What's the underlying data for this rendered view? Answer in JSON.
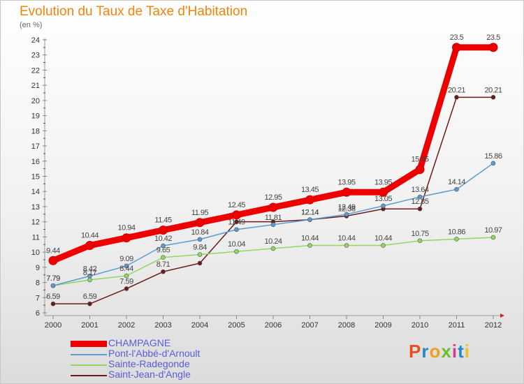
{
  "page": {
    "title": "Evolution du Taux de Taxe d'Habitation",
    "subtitle": "(en %)"
  },
  "brand": {
    "text": "Proxiti",
    "letter_colors": [
      "#e8501c",
      "#1f8ac8",
      "#f0a020",
      "#6cbf2a",
      "#d23a8c",
      "#1f8ac8",
      "#f0c020"
    ]
  },
  "chart_data": {
    "type": "line",
    "title": "Evolution du Taux de Taxe d'Habitation",
    "ylabel": "(en %)",
    "xlabel": "",
    "x": [
      "2000",
      "2001",
      "2002",
      "2003",
      "2004",
      "2005",
      "2006",
      "2007",
      "2008",
      "2009",
      "2010",
      "2011",
      "2012"
    ],
    "ylim": [
      6,
      24
    ],
    "yticks": [
      6,
      7,
      8,
      9,
      10,
      11,
      12,
      13,
      14,
      15,
      16,
      17,
      18,
      19,
      20,
      21,
      22,
      23,
      24
    ],
    "grid": false,
    "legend_position": "bottom-left",
    "series": [
      {
        "name": "Saint-Jean-d'Angle",
        "color": "#6b1a1a",
        "values": [
          6.59,
          6.59,
          7.59,
          8.71,
          9.27,
          12.0,
          12.0,
          12.14,
          12.38,
          12.85,
          12.85,
          20.21,
          20.21
        ],
        "labels": [
          "6.59",
          "6.59",
          "7.59",
          "8.71",
          "",
          "",
          "",
          "12.14",
          "12.38",
          "",
          "12.85",
          "20.21",
          "20.21"
        ]
      },
      {
        "name": "Sainte-Radegonde",
        "color": "#90d860",
        "values": [
          7.79,
          8.17,
          8.44,
          9.65,
          9.84,
          10.04,
          10.24,
          10.44,
          10.44,
          10.44,
          10.75,
          10.86,
          10.97
        ],
        "labels": [
          "7.79",
          "8.17",
          "8.44",
          "9.65",
          "9.84",
          "10.04",
          "10.24",
          "10.44",
          "10.44",
          "10.44",
          "10.75",
          "10.86",
          "10.97"
        ]
      },
      {
        "name": "Pont-l'Abbé-d'Arnoult",
        "color": "#5b9bd0",
        "values": [
          7.79,
          8.42,
          9.09,
          10.42,
          10.84,
          11.49,
          11.81,
          12.14,
          12.49,
          13.05,
          13.64,
          14.14,
          15.86
        ],
        "labels": [
          "7.79",
          "8.42",
          "9.09",
          "10.42",
          "10.84",
          "11.49",
          "11.81",
          "12.14",
          "12.49",
          "13.05",
          "13.64",
          "14.14",
          "15.86"
        ]
      },
      {
        "name": "CHAMPAGNE",
        "color": "#ee0000",
        "values": [
          9.44,
          10.44,
          10.94,
          11.45,
          11.95,
          12.45,
          12.95,
          13.45,
          13.95,
          13.95,
          15.45,
          23.5,
          23.5
        ],
        "labels": [
          "9.44",
          "10.44",
          "10.94",
          "11.45",
          "11.95",
          "12.45",
          "12.95",
          "13.45",
          "13.95",
          "13.95",
          "15.45",
          "23.5",
          "23.5"
        ]
      }
    ],
    "legend_order": [
      "CHAMPAGNE",
      "Pont-l'Abbé-d'Arnoult",
      "Sainte-Radegonde",
      "Saint-Jean-d'Angle"
    ]
  }
}
